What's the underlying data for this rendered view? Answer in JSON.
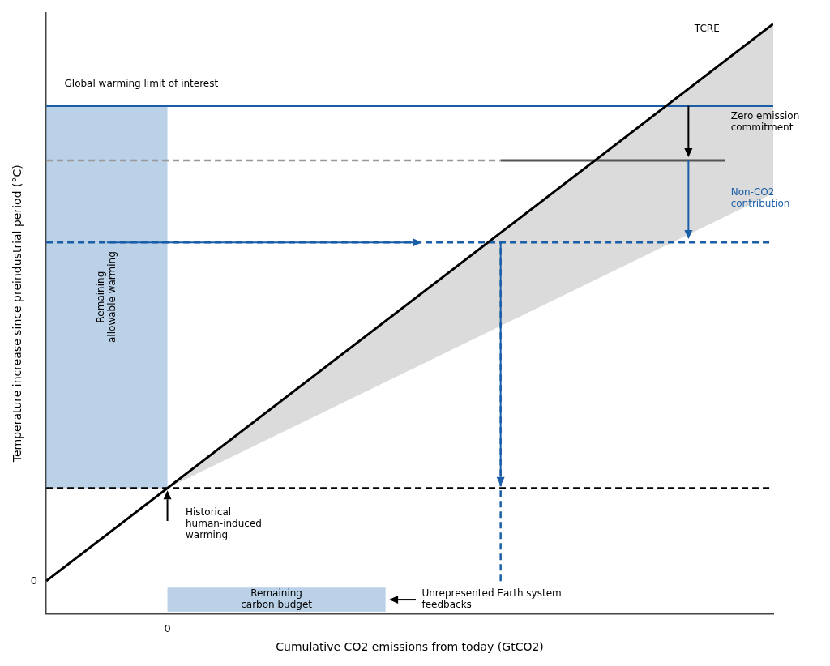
{
  "chart_data": {
    "type": "line",
    "xlabel": "Cumulative CO2 emissions from today (GtCO2)",
    "ylabel": "Temperature increase since preindustrial period (°C)",
    "xlim": [
      -1.0,
      5.0
    ],
    "ylim": [
      -0.3,
      5.2
    ],
    "xticks": [
      0
    ],
    "yticks": [
      0
    ],
    "grid": false,
    "band": {
      "x": [
        0.0,
        5.0
      ],
      "lower": [
        0.85,
        3.55
      ],
      "upper": [
        0.85,
        5.1
      ],
      "color": "#cccccc"
    },
    "series": [
      {
        "x": [
          -1.0,
          5.0
        ],
        "values": [
          0.0,
          5.1
        ],
        "color": "black",
        "line_style": "solid"
      },
      {
        "x": [
          -1.0,
          5.0
        ],
        "values": [
          4.35,
          4.35
        ],
        "color": "#1a5ea8",
        "line_style": "solid"
      },
      {
        "x": [
          -1.0,
          2.75
        ],
        "values": [
          3.85,
          3.85
        ],
        "color": "#999999",
        "line_style": "dashed"
      },
      {
        "x": [
          2.75,
          4.6
        ],
        "values": [
          3.85,
          3.85
        ],
        "color": "#555555",
        "line_style": "solid"
      },
      {
        "x": [
          -1.0,
          5.0
        ],
        "values": [
          3.1,
          3.1
        ],
        "color": "#1a5ea8",
        "line_style": "dashed"
      },
      {
        "x": [
          -1.0,
          5.0
        ],
        "values": [
          0.85,
          0.85
        ],
        "color": "black",
        "line_style": "dashed"
      },
      {
        "x": [
          2.75,
          2.75
        ],
        "values": [
          0.0,
          3.1
        ],
        "color": "#1a5ea8",
        "line_style": "dashed"
      }
    ],
    "arrows": [
      {
        "from": [
          -0.5,
          3.1
        ],
        "to": [
          2.1,
          3.1
        ],
        "color": "#1a5ea8"
      },
      {
        "from": [
          2.75,
          3.1
        ],
        "to": [
          2.75,
          0.87
        ],
        "color": "#1a5ea8"
      },
      {
        "from": [
          4.3,
          4.35
        ],
        "to": [
          4.3,
          3.88
        ],
        "color": "black"
      },
      {
        "from": [
          4.3,
          3.85
        ],
        "to": [
          4.3,
          3.13
        ],
        "color": "#1a5ea8"
      },
      {
        "from": [
          0.0,
          0.55
        ],
        "to": [
          0.0,
          0.83
        ],
        "color": "black"
      },
      {
        "from": [
          2.05,
          -0.17
        ],
        "to": [
          1.83,
          -0.17
        ],
        "color": "black"
      }
    ],
    "boxes": [
      {
        "x": [
          -1.0,
          0.0
        ],
        "y": [
          0.85,
          4.35
        ],
        "color": "#6699cc",
        "label": "Remaining\nallowable warming"
      },
      {
        "x": [
          0.0,
          1.8
        ],
        "y": [
          -0.28,
          -0.06
        ],
        "color": "#6699cc",
        "label": "Remaining\ncarbon budget"
      }
    ],
    "annotations": [
      {
        "text": "TCRE",
        "x": 4.35,
        "y": 5.05,
        "color": "black"
      },
      {
        "text": "Global warming limit of interest",
        "x": -0.85,
        "y": 4.55,
        "color": "black"
      },
      {
        "text": "Zero emission\ncommitment",
        "x": 4.65,
        "y": 4.2,
        "color": "black"
      },
      {
        "text": "Non-CO2\ncontribution",
        "x": 4.65,
        "y": 3.5,
        "color": "#1a5ea8"
      },
      {
        "text": "Historical\nhuman-induced\nwarming",
        "x": 0.15,
        "y": 0.52,
        "color": "black"
      },
      {
        "text": "Unrepresented Earth system\nfeedbacks",
        "x": 2.1,
        "y": -0.17,
        "color": "black"
      }
    ]
  }
}
